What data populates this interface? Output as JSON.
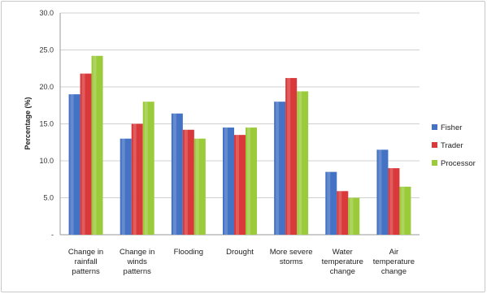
{
  "chart_data": {
    "type": "bar",
    "title": "",
    "xlabel": "",
    "ylabel": "Percentage (%)",
    "ylim": [
      0,
      30
    ],
    "yticks": [
      "-",
      "5.0",
      "10.0",
      "15.0",
      "20.0",
      "25.0",
      "30.0"
    ],
    "ytick_values": [
      0,
      5,
      10,
      15,
      20,
      25,
      30
    ],
    "grid": true,
    "legend_position": "right",
    "categories": [
      [
        "Change in",
        "rainfall",
        "patterns"
      ],
      [
        "Change in",
        "winds",
        "patterns"
      ],
      [
        "Flooding"
      ],
      [
        "Drought"
      ],
      [
        "More severe",
        "storms"
      ],
      [
        "Water",
        "temperature",
        "change"
      ],
      [
        "Air",
        "temperature",
        "change"
      ]
    ],
    "series": [
      {
        "name": "Fisher",
        "color": "#4472C4",
        "values": [
          19.0,
          13.0,
          16.4,
          14.5,
          18.0,
          8.5,
          11.5
        ]
      },
      {
        "name": "Trader",
        "color": "#D9393A",
        "values": [
          21.8,
          15.0,
          14.2,
          13.5,
          21.2,
          5.9,
          9.0
        ]
      },
      {
        "name": "Processor",
        "color": "#9BCB3B",
        "values": [
          24.2,
          18.0,
          13.0,
          14.5,
          19.4,
          5.0,
          6.5
        ]
      }
    ]
  }
}
